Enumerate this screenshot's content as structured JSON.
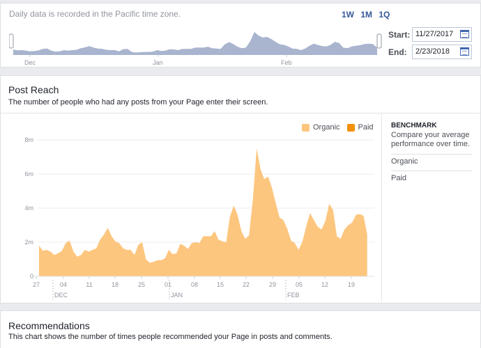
{
  "range": {
    "tz_note": "Daily data is recorded in the Pacific time zone.",
    "buttons": [
      "1W",
      "1M",
      "1Q"
    ],
    "start_label": "Start:",
    "start_value": "11/27/2017",
    "end_label": "End:",
    "end_value": "2/23/2018",
    "mini_months": [
      "Dec",
      "Jan",
      "Feb"
    ]
  },
  "post_reach": {
    "title": "Post Reach",
    "subtitle": "The number of people who had any posts from your Page enter their screen.",
    "legend": [
      {
        "label": "Organic",
        "color": "#fdc67f"
      },
      {
        "label": "Paid",
        "color": "#f5900a"
      }
    ],
    "benchmark": {
      "title": "BENCHMARK",
      "description": "Compare your average performance over time.",
      "items": [
        "Organic",
        "Paid"
      ]
    }
  },
  "chart_data": {
    "type": "area",
    "y_ticks": [
      "0",
      "2m",
      "4m",
      "6m",
      "8m"
    ],
    "ylim": [
      0,
      8000000
    ],
    "x_tick_labels": [
      "27",
      "04",
      "11",
      "18",
      "25",
      "01",
      "08",
      "15",
      "22",
      "29",
      "05",
      "12",
      "19"
    ],
    "month_labels": [
      "DEC",
      "JAN",
      "FEB"
    ],
    "grid": true,
    "legend_position": "top-right",
    "series": [
      {
        "name": "Organic",
        "color": "#fdc67f",
        "values": [
          1.8,
          1.5,
          1.55,
          1.45,
          1.25,
          1.35,
          1.5,
          1.95,
          2.1,
          1.45,
          1.15,
          1.25,
          1.55,
          1.45,
          1.55,
          1.65,
          2.15,
          2.45,
          2.85,
          2.35,
          2.05,
          1.95,
          1.65,
          1.55,
          1.55,
          1.25,
          1.85,
          2.0,
          1.0,
          0.8,
          0.85,
          0.95,
          0.95,
          1.05,
          1.55,
          1.3,
          1.35,
          1.9,
          1.8,
          1.6,
          1.95,
          2.0,
          1.95,
          2.35,
          2.35,
          2.35,
          2.65,
          2.15,
          2.05,
          2.0,
          3.5,
          4.15,
          3.6,
          2.65,
          2.2,
          2.4,
          4.5,
          7.5,
          6.3,
          5.7,
          5.85,
          5.2,
          4.3,
          3.45,
          3.3,
          2.8,
          2.1,
          1.95,
          1.55,
          2.05,
          2.95,
          3.7,
          3.3,
          2.9,
          2.75,
          3.25,
          4.25,
          3.9,
          2.35,
          2.2,
          2.75,
          3.0,
          3.15,
          3.6,
          3.65,
          3.55,
          2.4
        ],
        "unit": "millions"
      },
      {
        "name": "Paid",
        "color": "#f5900a",
        "values": []
      }
    ]
  },
  "mini_chart": {
    "values": [
      0.18,
      0.15,
      0.16,
      0.14,
      0.12,
      0.13,
      0.15,
      0.2,
      0.21,
      0.14,
      0.11,
      0.12,
      0.16,
      0.14,
      0.16,
      0.17,
      0.22,
      0.25,
      0.29,
      0.24,
      0.21,
      0.2,
      0.17,
      0.16,
      0.16,
      0.12,
      0.19,
      0.2,
      0.1,
      0.08,
      0.09,
      0.1,
      0.1,
      0.11,
      0.16,
      0.13,
      0.14,
      0.19,
      0.18,
      0.16,
      0.2,
      0.2,
      0.2,
      0.24,
      0.24,
      0.24,
      0.27,
      0.22,
      0.21,
      0.2,
      0.35,
      0.42,
      0.36,
      0.27,
      0.22,
      0.24,
      0.45,
      0.75,
      0.63,
      0.57,
      0.59,
      0.52,
      0.43,
      0.35,
      0.33,
      0.28,
      0.21,
      0.2,
      0.16,
      0.21,
      0.3,
      0.37,
      0.33,
      0.29,
      0.28,
      0.33,
      0.43,
      0.39,
      0.24,
      0.22,
      0.28,
      0.3,
      0.32,
      0.36,
      0.37,
      0.36,
      0.24
    ],
    "color": "#a9b4cf"
  },
  "recommendations": {
    "title": "Recommendations",
    "subtitle": "This chart shows the number of times people recommended your Page in posts and comments."
  }
}
